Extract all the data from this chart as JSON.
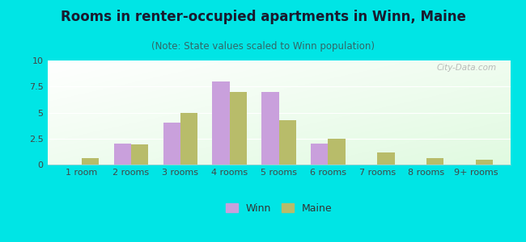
{
  "title": "Rooms in renter-occupied apartments in Winn, Maine",
  "subtitle": "(Note: State values scaled to Winn population)",
  "categories": [
    "1 room",
    "2 rooms",
    "3 rooms",
    "4 rooms",
    "5 rooms",
    "6 rooms",
    "7 rooms",
    "8 rooms",
    "9+ rooms"
  ],
  "winn_values": [
    0,
    2.0,
    4.0,
    8.0,
    7.0,
    2.0,
    0,
    0,
    0
  ],
  "maine_values": [
    0.6,
    1.9,
    5.0,
    7.0,
    4.3,
    2.5,
    1.2,
    0.6,
    0.5
  ],
  "winn_color": "#c9a0dc",
  "maine_color": "#b8bc6a",
  "ylim": [
    0,
    10
  ],
  "yticks": [
    0,
    2.5,
    5,
    7.5,
    10
  ],
  "bg_color": "#00e5e5",
  "title_fontsize": 12,
  "subtitle_fontsize": 8.5,
  "tick_fontsize": 8,
  "legend_fontsize": 9,
  "bar_width": 0.35,
  "watermark_text": "City-Data.com"
}
